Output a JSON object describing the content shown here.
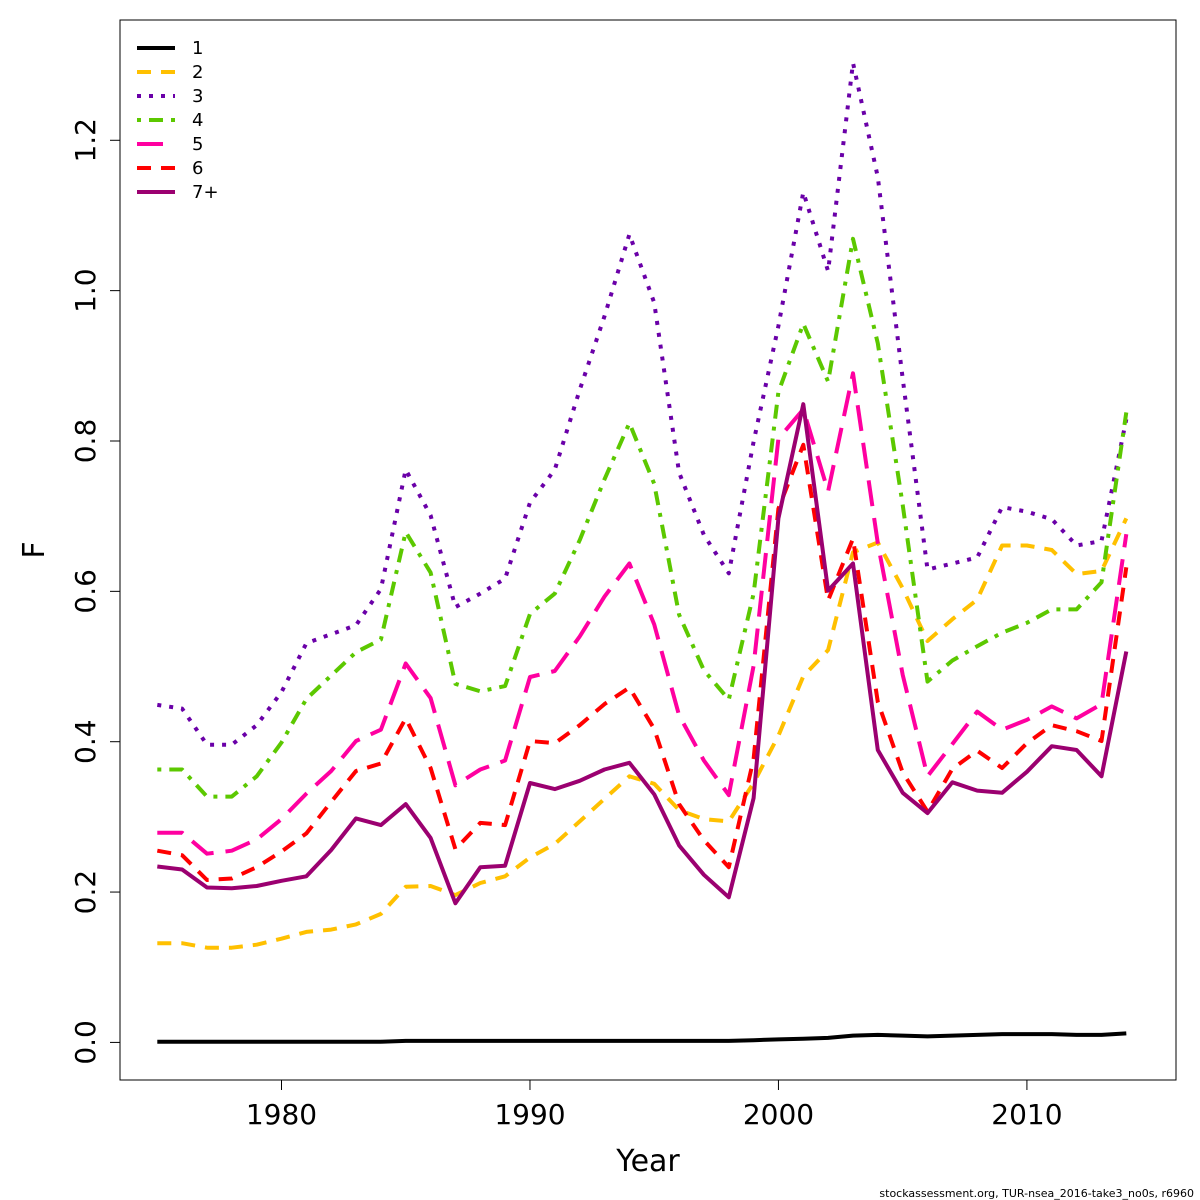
{
  "chart_data": {
    "type": "line",
    "xlabel": "Year",
    "ylabel": "F",
    "xlim": [
      1973.5,
      2016.0
    ],
    "ylim": [
      -0.05,
      1.36
    ],
    "x_ticks": [
      1980,
      1990,
      2000,
      2010
    ],
    "y_ticks": [
      0.0,
      0.2,
      0.4,
      0.6,
      0.8,
      1.0,
      1.2
    ],
    "x_tick_labels": [
      "1980",
      "1990",
      "2000",
      "2010"
    ],
    "y_tick_labels": [
      "0.0",
      "0.2",
      "0.4",
      "0.6",
      "0.8",
      "1.0",
      "1.2"
    ],
    "legend_position": "top-left",
    "grid": false,
    "x": [
      1975,
      1976,
      1977,
      1978,
      1979,
      1980,
      1981,
      1982,
      1983,
      1984,
      1985,
      1986,
      1987,
      1988,
      1989,
      1990,
      1991,
      1992,
      1993,
      1994,
      1995,
      1996,
      1997,
      1998,
      1999,
      2000,
      2001,
      2002,
      2003,
      2004,
      2005,
      2006,
      2007,
      2008,
      2009,
      2010,
      2011,
      2012,
      2013,
      2014
    ],
    "series": [
      {
        "name": "1",
        "color": "#000000",
        "dash": "solid",
        "width": 4,
        "values": [
          0.001,
          0.001,
          0.001,
          0.001,
          0.001,
          0.001,
          0.001,
          0.001,
          0.001,
          0.001,
          0.002,
          0.002,
          0.002,
          0.002,
          0.002,
          0.002,
          0.002,
          0.002,
          0.002,
          0.002,
          0.002,
          0.002,
          0.002,
          0.002,
          0.003,
          0.004,
          0.005,
          0.006,
          0.009,
          0.01,
          0.009,
          0.008,
          0.009,
          0.01,
          0.011,
          0.011,
          0.011,
          0.01,
          0.01,
          0.012
        ]
      },
      {
        "name": "2",
        "color": "#FFC000",
        "dash": "dash",
        "width": 4,
        "values": [
          0.132,
          0.132,
          0.126,
          0.126,
          0.13,
          0.138,
          0.147,
          0.15,
          0.157,
          0.171,
          0.207,
          0.208,
          0.196,
          0.212,
          0.221,
          0.246,
          0.264,
          0.294,
          0.324,
          0.354,
          0.344,
          0.309,
          0.297,
          0.294,
          0.345,
          0.408,
          0.487,
          0.522,
          0.652,
          0.665,
          0.604,
          0.534,
          0.563,
          0.589,
          0.661,
          0.661,
          0.655,
          0.623,
          0.627,
          0.697
        ]
      },
      {
        "name": "3",
        "color": "#6A00A8",
        "dash": "dot",
        "width": 4,
        "values": [
          0.449,
          0.444,
          0.396,
          0.396,
          0.422,
          0.466,
          0.531,
          0.543,
          0.555,
          0.603,
          0.762,
          0.701,
          0.579,
          0.597,
          0.617,
          0.718,
          0.762,
          0.868,
          0.966,
          1.075,
          0.984,
          0.758,
          0.675,
          0.624,
          0.799,
          0.953,
          1.131,
          1.026,
          1.303,
          1.151,
          0.883,
          0.629,
          0.637,
          0.645,
          0.712,
          0.706,
          0.696,
          0.661,
          0.667,
          0.829
        ]
      },
      {
        "name": "4",
        "color": "#5CC800",
        "dash": "dashdot",
        "width": 4,
        "values": [
          0.363,
          0.363,
          0.327,
          0.327,
          0.354,
          0.399,
          0.457,
          0.488,
          0.519,
          0.536,
          0.679,
          0.625,
          0.477,
          0.467,
          0.474,
          0.57,
          0.597,
          0.668,
          0.749,
          0.824,
          0.743,
          0.569,
          0.495,
          0.456,
          0.597,
          0.865,
          0.956,
          0.879,
          1.069,
          0.93,
          0.715,
          0.48,
          0.508,
          0.527,
          0.545,
          0.558,
          0.576,
          0.576,
          0.612,
          0.838
        ]
      },
      {
        "name": "5",
        "color": "#FF00A0",
        "dash": "longdash",
        "width": 4,
        "values": [
          0.279,
          0.279,
          0.251,
          0.255,
          0.27,
          0.297,
          0.331,
          0.361,
          0.401,
          0.416,
          0.504,
          0.458,
          0.342,
          0.363,
          0.375,
          0.486,
          0.494,
          0.54,
          0.593,
          0.637,
          0.556,
          0.435,
          0.375,
          0.329,
          0.501,
          0.803,
          0.842,
          0.733,
          0.89,
          0.664,
          0.489,
          0.354,
          0.397,
          0.44,
          0.416,
          0.429,
          0.447,
          0.431,
          0.45,
          0.676
        ]
      },
      {
        "name": "6",
        "color": "#FF0000",
        "dash": "dash",
        "width": 4,
        "values": [
          0.255,
          0.249,
          0.216,
          0.218,
          0.233,
          0.254,
          0.278,
          0.32,
          0.361,
          0.371,
          0.431,
          0.365,
          0.257,
          0.292,
          0.289,
          0.401,
          0.398,
          0.422,
          0.45,
          0.472,
          0.417,
          0.317,
          0.269,
          0.233,
          0.377,
          0.71,
          0.795,
          0.588,
          0.67,
          0.453,
          0.359,
          0.307,
          0.364,
          0.388,
          0.365,
          0.398,
          0.422,
          0.414,
          0.401,
          0.632
        ]
      },
      {
        "name": "7+",
        "color": "#9B0070",
        "dash": "solid",
        "width": 4,
        "values": [
          0.234,
          0.23,
          0.206,
          0.205,
          0.208,
          0.215,
          0.221,
          0.256,
          0.298,
          0.289,
          0.317,
          0.272,
          0.185,
          0.233,
          0.235,
          0.345,
          0.337,
          0.348,
          0.363,
          0.372,
          0.33,
          0.262,
          0.223,
          0.193,
          0.325,
          0.697,
          0.849,
          0.601,
          0.637,
          0.389,
          0.332,
          0.305,
          0.346,
          0.335,
          0.332,
          0.36,
          0.394,
          0.389,
          0.354,
          0.52
        ]
      }
    ]
  },
  "footer": {
    "credit": "stockassessment.org, TUR-nsea_2016-take3_no0s, r6960"
  }
}
